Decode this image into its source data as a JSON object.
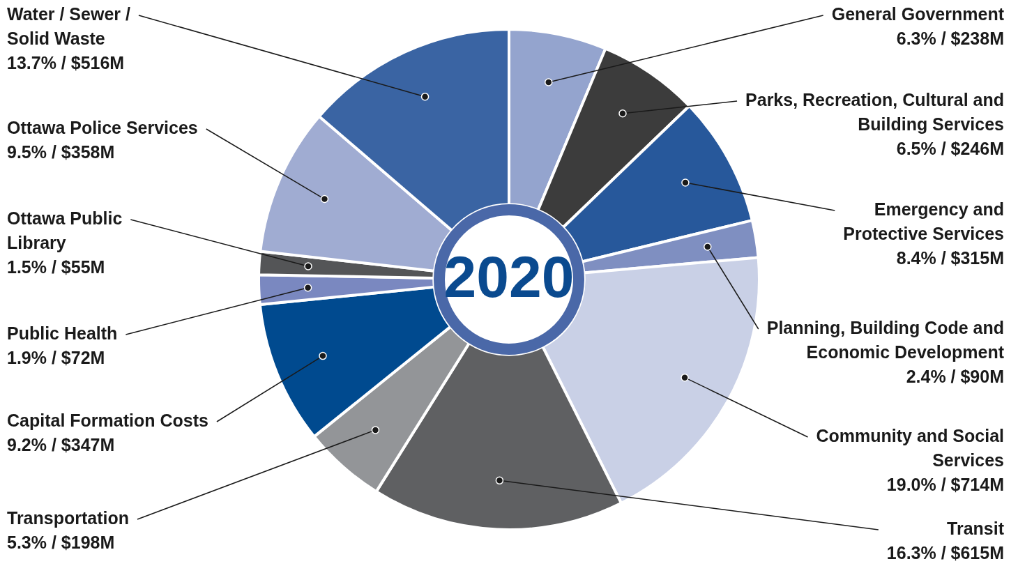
{
  "chart_data": {
    "type": "donut",
    "title": "2020",
    "categories": [
      "General Government",
      "Parks, Recreation, Cultural and Building Services",
      "Emergency and Protective Services",
      "Planning, Building Code and Economic Development",
      "Community and Social Services",
      "Transit",
      "Transportation",
      "Capital Formation Costs",
      "Public Health",
      "Ottawa Public Library",
      "Ottawa Police Services",
      "Water / Sewer / Solid Waste"
    ],
    "values": [
      6.3,
      6.5,
      8.4,
      2.4,
      19.0,
      16.3,
      5.3,
      9.2,
      1.9,
      1.5,
      9.5,
      13.7
    ],
    "colors": [
      "#94a4ce",
      "#3c3c3c",
      "#27589b",
      "#7f8fc1",
      "#c9d0e6",
      "#5f6062",
      "#939598",
      "#004a8f",
      "#7a88c0",
      "#545557",
      "#a0acd2",
      "#3a64a3"
    ],
    "value_labels": [
      "6.3% / $238M",
      "6.5% / $246M",
      "8.4% / $315M",
      "2.4% / $90M",
      "19.0% / $714M",
      "16.3% / $615M",
      "5.3% / $198M",
      "9.2% / $347M",
      "1.9% / $72M",
      "1.5% / $55M",
      "9.5% / $358M",
      "13.7% / $516M"
    ],
    "legend": false
  }
}
